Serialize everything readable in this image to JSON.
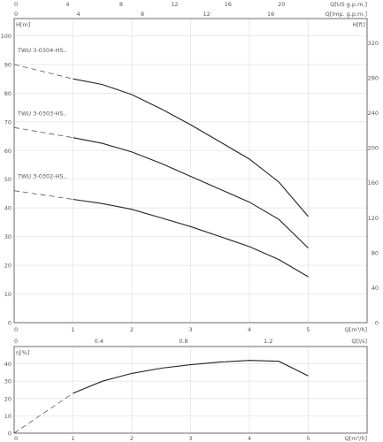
{
  "chart_data": [
    {
      "type": "line",
      "x_unit": "Q[m³/h]",
      "y_unit": "H[m]",
      "xlim": [
        0,
        6
      ],
      "ylim": [
        0,
        106
      ],
      "x_ticks": [
        0,
        1,
        2,
        3,
        4,
        5
      ],
      "y_ticks": [
        0,
        10,
        20,
        30,
        40,
        50,
        60,
        70,
        80,
        90,
        100
      ],
      "top_axis_1": {
        "unit": "Q[US g.p.m.]",
        "ticks": [
          0,
          4,
          8,
          12,
          16,
          20
        ]
      },
      "top_axis_2": {
        "unit": "Q[lmp. g.p.m.]",
        "ticks": [
          0,
          4,
          8,
          12,
          16
        ]
      },
      "right_axis": {
        "unit": "H[ft]",
        "ticks": [
          0,
          40,
          80,
          120,
          160,
          200,
          240,
          280,
          320
        ]
      },
      "series": [
        {
          "name": "TWU 3-0304-HS..",
          "x": [
            1,
            1.5,
            2,
            2.5,
            3,
            3.5,
            4,
            4.5,
            5
          ],
          "y": [
            85,
            83,
            79.5,
            74.5,
            69,
            63,
            57,
            49,
            37
          ],
          "extension": {
            "x": [
              0,
              1
            ],
            "y": [
              90,
              85
            ]
          }
        },
        {
          "name": "TWU 3-0303-HS..",
          "x": [
            1,
            1.5,
            2,
            2.5,
            3,
            3.5,
            4,
            4.5,
            5
          ],
          "y": [
            64.5,
            62.5,
            59.5,
            55.5,
            51,
            46.5,
            42,
            36,
            26
          ],
          "extension": {
            "x": [
              0,
              1
            ],
            "y": [
              68,
              64.5
            ]
          }
        },
        {
          "name": "TWU 3-0302-HS..",
          "x": [
            1,
            1.5,
            2,
            2.5,
            3,
            3.5,
            4,
            4.5,
            5
          ],
          "y": [
            43,
            41.5,
            39.5,
            36.5,
            33.5,
            30,
            26.5,
            22,
            16
          ],
          "extension": {
            "x": [
              0,
              1
            ],
            "y": [
              46,
              43
            ]
          }
        }
      ]
    },
    {
      "type": "line",
      "x_unit": "Q[m³/h]",
      "y_unit": "η[%]",
      "xlim": [
        0,
        6
      ],
      "ylim": [
        0,
        50
      ],
      "x_ticks": [
        0,
        1,
        2,
        3,
        4,
        5
      ],
      "y_ticks": [
        0,
        10,
        20,
        30,
        40
      ],
      "top_axis": {
        "unit": "Q[l/s]",
        "ticks": [
          0,
          0.4,
          0.8,
          1.2
        ]
      },
      "series": [
        {
          "x": [
            1,
            1.5,
            2,
            2.5,
            3,
            3.5,
            4,
            4.5,
            5
          ],
          "y": [
            23,
            30,
            34.5,
            37.5,
            39.5,
            41,
            42,
            41.5,
            33
          ],
          "extension": {
            "x": [
              0,
              1
            ],
            "y": [
              0,
              23
            ]
          }
        }
      ]
    }
  ]
}
